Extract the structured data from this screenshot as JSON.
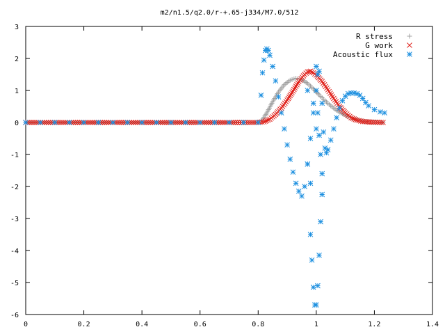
{
  "chart_data": {
    "type": "scatter",
    "title": "m2/n1.5/q2.0/r-+.65-j334/M7.0/512",
    "xlabel": "",
    "ylabel": "",
    "xlim": [
      0,
      1.4
    ],
    "ylim": [
      -6,
      3
    ],
    "x_ticks": [
      "0",
      "0.2",
      "0.4",
      "0.6",
      "0.8",
      "1",
      "1.2",
      "1.4"
    ],
    "y_ticks": [
      "3",
      "2",
      "1",
      "0",
      "-1",
      "-2",
      "-3",
      "-4",
      "-5",
      "-6"
    ],
    "grid": false,
    "legend_position": "top-right",
    "series": [
      {
        "name": "R stress",
        "marker": "plus",
        "color": "#a0a0a0",
        "points": [
          [
            0.0,
            0
          ],
          [
            0.1,
            0
          ],
          [
            0.2,
            0
          ],
          [
            0.3,
            0
          ],
          [
            0.4,
            0
          ],
          [
            0.5,
            0
          ],
          [
            0.6,
            0
          ],
          [
            0.7,
            0
          ],
          [
            0.78,
            0
          ],
          [
            0.81,
            0.02
          ],
          [
            0.83,
            0.3
          ],
          [
            0.85,
            0.65
          ],
          [
            0.87,
            0.95
          ],
          [
            0.89,
            1.18
          ],
          [
            0.91,
            1.32
          ],
          [
            0.93,
            1.38
          ],
          [
            0.95,
            1.34
          ],
          [
            0.97,
            1.22
          ],
          [
            0.99,
            1.05
          ],
          [
            1.01,
            0.86
          ],
          [
            1.03,
            0.68
          ],
          [
            1.05,
            0.52
          ],
          [
            1.07,
            0.38
          ],
          [
            1.09,
            0.27
          ],
          [
            1.11,
            0.18
          ],
          [
            1.13,
            0.11
          ],
          [
            1.15,
            0.06
          ],
          [
            1.17,
            0.03
          ],
          [
            1.2,
            0.01
          ],
          [
            1.23,
            0
          ]
        ]
      },
      {
        "name": "G work",
        "marker": "cross",
        "color": "#e0201a",
        "points": [
          [
            0.0,
            0
          ],
          [
            0.1,
            0
          ],
          [
            0.2,
            0
          ],
          [
            0.3,
            0
          ],
          [
            0.4,
            0
          ],
          [
            0.5,
            0
          ],
          [
            0.6,
            0
          ],
          [
            0.7,
            0
          ],
          [
            0.8,
            0
          ],
          [
            0.82,
            0.02
          ],
          [
            0.84,
            0.1
          ],
          [
            0.86,
            0.25
          ],
          [
            0.88,
            0.45
          ],
          [
            0.9,
            0.7
          ],
          [
            0.92,
            0.98
          ],
          [
            0.94,
            1.28
          ],
          [
            0.96,
            1.5
          ],
          [
            0.97,
            1.58
          ],
          [
            0.98,
            1.6
          ],
          [
            0.99,
            1.55
          ],
          [
            1.0,
            1.48
          ],
          [
            1.02,
            1.28
          ],
          [
            1.04,
            1.02
          ],
          [
            1.06,
            0.75
          ],
          [
            1.08,
            0.5
          ],
          [
            1.1,
            0.3
          ],
          [
            1.12,
            0.15
          ],
          [
            1.14,
            0.07
          ],
          [
            1.16,
            0.03
          ],
          [
            1.19,
            0.01
          ],
          [
            1.23,
            0
          ]
        ]
      },
      {
        "name": "Acoustic flux",
        "marker": "star",
        "color": "#1e90e0",
        "points": [
          [
            0.0,
            0
          ],
          [
            0.05,
            0
          ],
          [
            0.1,
            0
          ],
          [
            0.15,
            0
          ],
          [
            0.2,
            0
          ],
          [
            0.25,
            0
          ],
          [
            0.3,
            0
          ],
          [
            0.35,
            0
          ],
          [
            0.4,
            0
          ],
          [
            0.45,
            0
          ],
          [
            0.5,
            0
          ],
          [
            0.55,
            0
          ],
          [
            0.6,
            0
          ],
          [
            0.65,
            0
          ],
          [
            0.7,
            0
          ],
          [
            0.75,
            0
          ],
          [
            0.8,
            0
          ],
          [
            0.81,
            0.85
          ],
          [
            0.815,
            1.55
          ],
          [
            0.82,
            1.95
          ],
          [
            0.825,
            2.25
          ],
          [
            0.83,
            2.3
          ],
          [
            0.835,
            2.25
          ],
          [
            0.84,
            2.1
          ],
          [
            0.85,
            1.75
          ],
          [
            0.86,
            1.3
          ],
          [
            0.87,
            0.8
          ],
          [
            0.88,
            0.3
          ],
          [
            0.89,
            -0.2
          ],
          [
            0.9,
            -0.7
          ],
          [
            0.91,
            -1.15
          ],
          [
            0.92,
            -1.55
          ],
          [
            0.93,
            -1.9
          ],
          [
            0.94,
            -2.15
          ],
          [
            0.95,
            -2.3
          ],
          [
            0.96,
            -2.0
          ],
          [
            0.97,
            -1.3
          ],
          [
            0.98,
            -0.5
          ],
          [
            0.99,
            0.3
          ],
          [
            1.0,
            1.0
          ],
          [
            1.005,
            1.5
          ],
          [
            1.0,
            1.75
          ],
          [
            1.01,
            1.6
          ],
          [
            1.02,
            0.6
          ],
          [
            1.025,
            -0.3
          ],
          [
            1.03,
            -0.8
          ],
          [
            1.035,
            -0.95
          ],
          [
            1.04,
            -0.85
          ],
          [
            1.05,
            -0.55
          ],
          [
            1.06,
            -0.2
          ],
          [
            1.07,
            0.15
          ],
          [
            1.08,
            0.45
          ],
          [
            1.09,
            0.68
          ],
          [
            1.1,
            0.82
          ],
          [
            1.11,
            0.9
          ],
          [
            1.12,
            0.92
          ],
          [
            1.13,
            0.92
          ],
          [
            1.14,
            0.9
          ],
          [
            1.15,
            0.85
          ],
          [
            1.16,
            0.75
          ],
          [
            1.17,
            0.62
          ],
          [
            1.18,
            0.52
          ],
          [
            1.2,
            0.4
          ],
          [
            1.22,
            0.33
          ],
          [
            1.235,
            0.3
          ],
          [
            0.97,
            1.0
          ],
          [
            0.99,
            0.6
          ],
          [
            0.97,
            -1.3
          ],
          [
            0.98,
            -1.9
          ],
          [
            0.98,
            -3.5
          ],
          [
            0.985,
            -4.3
          ],
          [
            0.99,
            -5.15
          ],
          [
            0.995,
            -5.7
          ],
          [
            1.0,
            -5.7
          ],
          [
            1.005,
            -5.1
          ],
          [
            1.01,
            -4.15
          ],
          [
            1.015,
            -3.1
          ],
          [
            1.02,
            -2.25
          ],
          [
            1.02,
            -1.6
          ],
          [
            1.015,
            -1.0
          ],
          [
            1.01,
            -0.4
          ],
          [
            1.005,
            0.3
          ],
          [
            1.0,
            -0.2
          ]
        ]
      }
    ]
  }
}
